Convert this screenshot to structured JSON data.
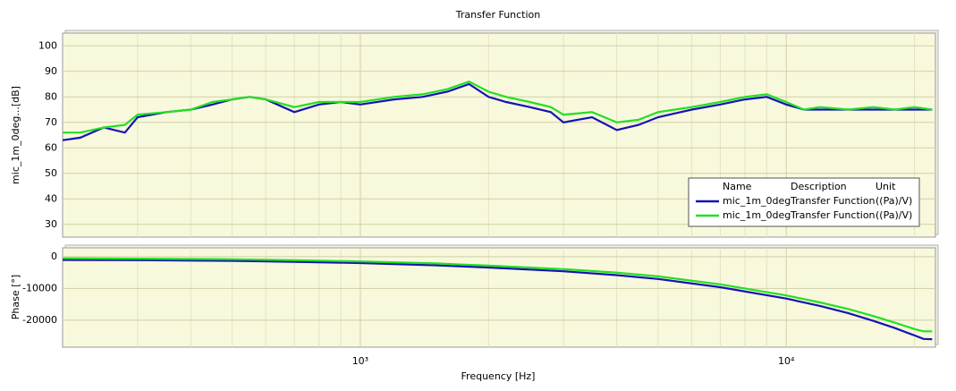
{
  "chart_data": [
    {
      "type": "line",
      "title": "Transfer Function",
      "ylabel": "mic_1m_0deg...[dB]",
      "xscale": "log",
      "xlim": [
        200,
        22400
      ],
      "xticks": [
        1000,
        10000
      ],
      "ylim": [
        25,
        105
      ],
      "yticks": [
        30,
        40,
        50,
        60,
        70,
        80,
        90,
        100
      ],
      "grid": true,
      "x": [
        200,
        220,
        250,
        280,
        300,
        350,
        400,
        450,
        500,
        550,
        600,
        700,
        800,
        900,
        1000,
        1200,
        1400,
        1600,
        1800,
        2000,
        2200,
        2500,
        2800,
        3000,
        3500,
        4000,
        4500,
        5000,
        6000,
        7000,
        8000,
        9000,
        10000,
        11000,
        12000,
        14000,
        16000,
        18000,
        20000,
        22000
      ],
      "legend": {
        "headers": [
          "Name",
          "Description",
          "Unit"
        ],
        "position": "lower right"
      },
      "series": [
        {
          "name": "mic_1m_0deg",
          "description": "Transfer Function",
          "unit": "((Pa)/V)",
          "color": "#1414b4",
          "values": [
            63,
            64,
            68,
            66,
            72,
            74,
            75,
            77,
            79,
            80,
            79,
            74,
            77,
            78,
            77,
            79,
            80,
            82,
            85,
            80,
            78,
            76,
            74,
            70,
            72,
            67,
            69,
            72,
            75,
            77,
            79,
            80,
            77,
            75,
            75,
            75,
            75,
            75,
            75,
            75
          ]
        },
        {
          "name": "mic_1m_0deg",
          "description": "Transfer Function",
          "unit": "((Pa)/V)",
          "color": "#22e022",
          "values": [
            66,
            66,
            68,
            69,
            73,
            74,
            75,
            78,
            79,
            80,
            79,
            76,
            78,
            78,
            78,
            80,
            81,
            83,
            86,
            82,
            80,
            78,
            76,
            73,
            74,
            70,
            71,
            74,
            76,
            78,
            80,
            81,
            78,
            75,
            76,
            75,
            76,
            75,
            76,
            75
          ]
        }
      ]
    },
    {
      "type": "line",
      "ylabel": "Phase [°]",
      "xlabel": "Frequency [Hz]",
      "xscale": "log",
      "xlim": [
        200,
        22400
      ],
      "xticks": [
        {
          "value": 1000,
          "label": "10³"
        },
        {
          "value": 10000,
          "label": "10⁴"
        }
      ],
      "ylim": [
        -28500,
        2800
      ],
      "yticks": [
        0,
        -10000,
        -20000
      ],
      "grid": true,
      "x": [
        200,
        300,
        500,
        700,
        1000,
        1500,
        2000,
        3000,
        4000,
        5000,
        7000,
        10000,
        12000,
        14000,
        16000,
        18000,
        20000,
        21000,
        22000
      ],
      "series": [
        {
          "name": "mic_1m_0deg",
          "color": "#1414b4",
          "values": [
            -1000,
            -1100,
            -1300,
            -1600,
            -2000,
            -2700,
            -3400,
            -4600,
            -5800,
            -7000,
            -9600,
            -13200,
            -15500,
            -17800,
            -20200,
            -22500,
            -24800,
            -25900,
            -26000
          ]
        },
        {
          "name": "mic_1m_0deg",
          "color": "#22e022",
          "values": [
            -500,
            -600,
            -800,
            -1100,
            -1500,
            -2100,
            -2800,
            -3900,
            -5000,
            -6200,
            -8700,
            -12200,
            -14400,
            -16500,
            -18700,
            -20800,
            -22800,
            -23500,
            -23500
          ]
        }
      ]
    }
  ]
}
